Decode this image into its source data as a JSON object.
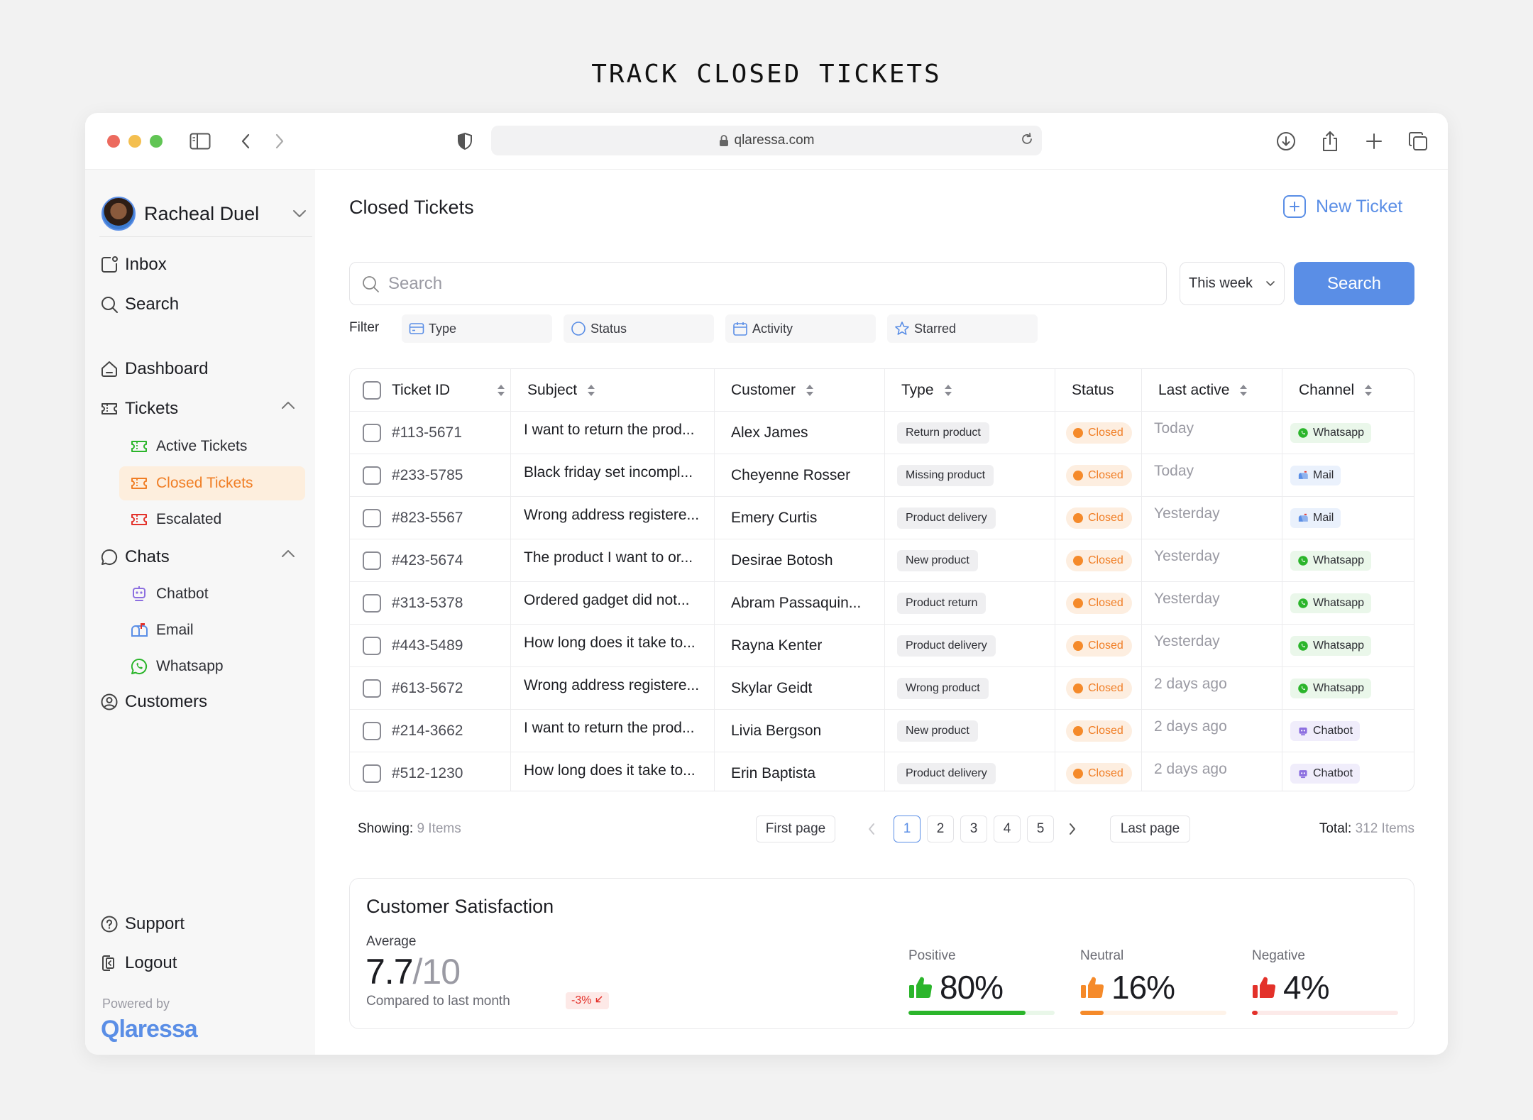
{
  "headline": "TRACK CLOSED TICKETS",
  "browser": {
    "url": "qlaressa.com"
  },
  "sidebar": {
    "user_name": "Racheal Duel",
    "items": [
      {
        "label": "Inbox"
      },
      {
        "label": "Search"
      },
      {
        "label": "Dashboard"
      },
      {
        "label": "Tickets"
      },
      {
        "label": "Active Tickets"
      },
      {
        "label": "Closed Tickets"
      },
      {
        "label": "Escalated"
      },
      {
        "label": "Chats"
      },
      {
        "label": "Chatbot"
      },
      {
        "label": "Email"
      },
      {
        "label": "Whatsapp"
      },
      {
        "label": "Customers"
      },
      {
        "label": "Support"
      },
      {
        "label": "Logout"
      }
    ],
    "powered_by": "Powered by",
    "brand": "Qlaressa"
  },
  "main": {
    "title": "Closed Tickets",
    "new_ticket": "New Ticket",
    "search_placeholder": "Search",
    "period": "This week",
    "search_button": "Search",
    "filter_label": "Filter",
    "filters": [
      "Type",
      "Status",
      "Activity",
      "Starred"
    ],
    "columns": [
      "Ticket ID",
      "Subject",
      "Customer",
      "Type",
      "Status",
      "Last active",
      "Channel"
    ],
    "rows": [
      {
        "id": "#113-5671",
        "subject": "I want to return the prod...",
        "customer": "Alex James",
        "type": "Return product",
        "status": "Closed",
        "last_active": "Today",
        "channel": "Whatsapp"
      },
      {
        "id": "#233-5785",
        "subject": "Black friday set incompl...",
        "customer": "Cheyenne Rosser",
        "type": "Missing product",
        "status": "Closed",
        "last_active": "Today",
        "channel": "Mail"
      },
      {
        "id": "#823-5567",
        "subject": "Wrong address registere...",
        "customer": "Emery Curtis",
        "type": "Product delivery",
        "status": "Closed",
        "last_active": "Yesterday",
        "channel": "Mail"
      },
      {
        "id": "#423-5674",
        "subject": "The product I want to or...",
        "customer": "Desirae Botosh",
        "type": "New product",
        "status": "Closed",
        "last_active": "Yesterday",
        "channel": "Whatsapp"
      },
      {
        "id": "#313-5378",
        "subject": "Ordered gadget did not...",
        "customer": "Abram Passaquin...",
        "type": "Product return",
        "status": "Closed",
        "last_active": "Yesterday",
        "channel": "Whatsapp"
      },
      {
        "id": "#443-5489",
        "subject": "How long does it take to...",
        "customer": "Rayna Kenter",
        "type": "Product delivery",
        "status": "Closed",
        "last_active": "Yesterday",
        "channel": "Whatsapp"
      },
      {
        "id": "#613-5672",
        "subject": "Wrong address registere...",
        "customer": "Skylar Geidt",
        "type": "Wrong product",
        "status": "Closed",
        "last_active": "2 days ago",
        "channel": "Whatsapp"
      },
      {
        "id": "#214-3662",
        "subject": "I want to return the prod...",
        "customer": "Livia Bergson",
        "type": "New product",
        "status": "Closed",
        "last_active": "2 days ago",
        "channel": "Chatbot"
      },
      {
        "id": "#512-1230",
        "subject": "How long does it take to...",
        "customer": "Erin Baptista",
        "type": "Product delivery",
        "status": "Closed",
        "last_active": "2 days ago",
        "channel": "Chatbot"
      }
    ],
    "pagination": {
      "showing_label": "Showing:",
      "showing_value": "9 Items",
      "first_page": "First page",
      "pages": [
        "1",
        "2",
        "3",
        "4",
        "5"
      ],
      "current_page": "1",
      "last_page": "Last page",
      "total_label": "Total:",
      "total_value": "312 Items"
    },
    "satisfaction": {
      "title": "Customer Satisfaction",
      "average_label": "Average",
      "average_value": "7.7",
      "average_denominator": "/10",
      "compare_label": "Compared to last month",
      "delta": "-3%",
      "metrics": [
        {
          "label": "Positive",
          "value": "80%",
          "fraction": 0.8,
          "color": "#2bb52b"
        },
        {
          "label": "Neutral",
          "value": "16%",
          "fraction": 0.16,
          "color": "#f58a2a"
        },
        {
          "label": "Negative",
          "value": "4%",
          "fraction": 0.04,
          "color": "#e3312a"
        }
      ]
    }
  },
  "colors": {
    "accent": "#5a8ee6",
    "active_orange": "#f07e25",
    "closed": "#f58a2a",
    "whatsapp": "#2bb52b"
  }
}
